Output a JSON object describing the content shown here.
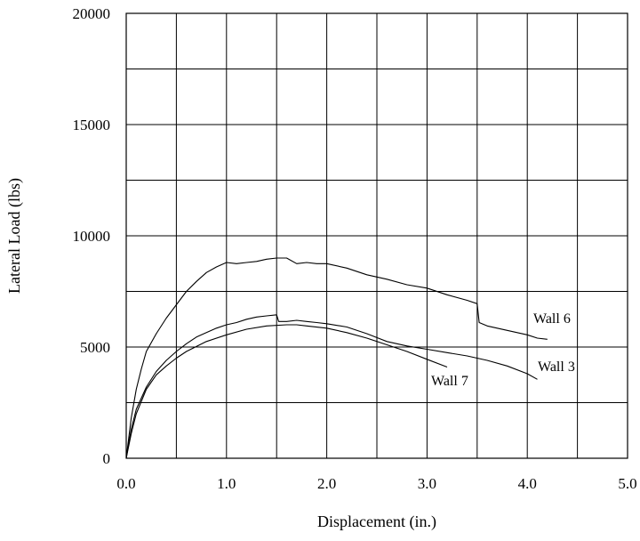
{
  "chart_data": {
    "type": "line",
    "title": "",
    "xlabel": "Displacement (in.)",
    "ylabel": "Lateral Load (lbs)",
    "xlim": [
      0,
      5
    ],
    "ylim": [
      0,
      20000
    ],
    "x_ticks": [
      0,
      0.5,
      1,
      1.5,
      2,
      2.5,
      3,
      3.5,
      4,
      4.5,
      5
    ],
    "y_ticks": [
      0,
      2500,
      5000,
      7500,
      10000,
      12500,
      15000,
      17500,
      20000
    ],
    "x_tick_labels": [
      "0.0",
      "1.0",
      "2.0",
      "3.0",
      "4.0",
      "5.0"
    ],
    "y_tick_labels": [
      "0",
      "5000",
      "10000",
      "15000",
      "20000"
    ],
    "grid": true,
    "legend": "none (series labeled directly on plot)",
    "series": [
      {
        "name": "Wall 6",
        "x": [
          0,
          0.05,
          0.1,
          0.15,
          0.2,
          0.3,
          0.4,
          0.5,
          0.6,
          0.7,
          0.8,
          0.9,
          1.0,
          1.1,
          1.2,
          1.3,
          1.4,
          1.5,
          1.6,
          1.7,
          1.8,
          1.9,
          2.0,
          2.2,
          2.4,
          2.6,
          2.8,
          3.0,
          3.2,
          3.4,
          3.5,
          3.52,
          3.6,
          3.8,
          4.0,
          4.1,
          4.2
        ],
        "y": [
          0,
          1800,
          3100,
          4000,
          4800,
          5600,
          6300,
          6900,
          7500,
          7950,
          8350,
          8600,
          8800,
          8750,
          8800,
          8850,
          8950,
          9000,
          9000,
          8750,
          8800,
          8750,
          8750,
          8550,
          8250,
          8050,
          7800,
          7650,
          7350,
          7100,
          6950,
          6100,
          5950,
          5750,
          5550,
          5400,
          5350
        ]
      },
      {
        "name": "Wall 3",
        "x": [
          0,
          0.05,
          0.1,
          0.2,
          0.3,
          0.4,
          0.5,
          0.6,
          0.7,
          0.8,
          0.9,
          1.0,
          1.1,
          1.2,
          1.3,
          1.4,
          1.5,
          1.52,
          1.6,
          1.7,
          1.8,
          1.9,
          2.0,
          2.2,
          2.4,
          2.6,
          2.8,
          3.0,
          3.2,
          3.4,
          3.6,
          3.8,
          4.0,
          4.1
        ],
        "y": [
          0,
          1300,
          2200,
          3200,
          3900,
          4400,
          4800,
          5150,
          5450,
          5650,
          5850,
          6000,
          6100,
          6250,
          6350,
          6400,
          6450,
          6150,
          6150,
          6200,
          6150,
          6100,
          6050,
          5900,
          5600,
          5250,
          5050,
          4900,
          4750,
          4600,
          4400,
          4150,
          3800,
          3550
        ]
      },
      {
        "name": "Wall 7",
        "x": [
          0,
          0.05,
          0.1,
          0.2,
          0.3,
          0.4,
          0.5,
          0.6,
          0.8,
          1.0,
          1.2,
          1.4,
          1.6,
          1.7,
          1.8,
          2.0,
          2.2,
          2.4,
          2.6,
          2.8,
          3.0,
          3.2
        ],
        "y": [
          0,
          1100,
          2000,
          3100,
          3750,
          4150,
          4500,
          4800,
          5250,
          5550,
          5800,
          5950,
          6000,
          6000,
          5950,
          5850,
          5650,
          5400,
          5100,
          4800,
          4450,
          4100
        ]
      }
    ]
  }
}
